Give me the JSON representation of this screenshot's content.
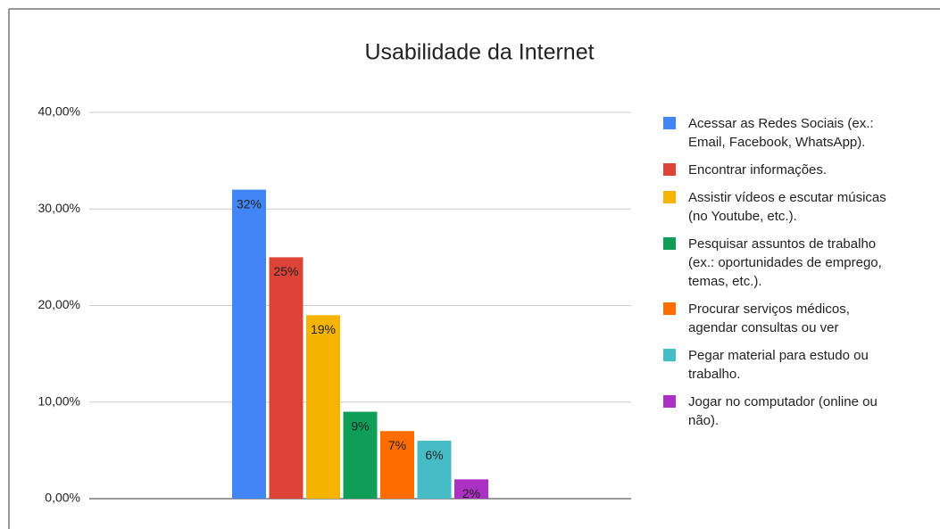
{
  "chart_data": {
    "type": "bar",
    "title": "Usabilidade da Internet",
    "categories": [
      null
    ],
    "series": [
      {
        "name": "Acessar as Redes Sociais (ex.: Email, Facebook, WhatsApp).",
        "color": "#4285f4",
        "values": [
          32
        ],
        "value_labels": [
          "32%"
        ]
      },
      {
        "name": "Encontrar informações.",
        "color": "#db4437",
        "values": [
          25
        ],
        "value_labels": [
          "25%"
        ]
      },
      {
        "name": "Assistir vídeos e escutar músicas (no Youtube, etc.).",
        "color": "#f4b400",
        "values": [
          19
        ],
        "value_labels": [
          "19%"
        ]
      },
      {
        "name": "Pesquisar assuntos de trabalho (ex.: oportunidades de emprego, temas, etc.).",
        "color": "#0f9d58",
        "values": [
          9
        ],
        "value_labels": [
          "9%"
        ]
      },
      {
        "name": "Procurar serviços médicos, agendar consultas ou ver",
        "color": "#ff6d00",
        "values": [
          7
        ],
        "value_labels": [
          "7%"
        ]
      },
      {
        "name": "Pegar material para estudo ou trabalho.",
        "color": "#46bdc6",
        "values": [
          6
        ],
        "value_labels": [
          "6%"
        ]
      },
      {
        "name": "Jogar no computador (online ou não).",
        "color": "#ab30c4",
        "values": [
          2
        ],
        "value_labels": [
          "2%"
        ]
      }
    ],
    "ylim": [
      0,
      40
    ],
    "yticks": [
      {
        "value": 0,
        "label": "0,00%"
      },
      {
        "value": 10,
        "label": "10,00%"
      },
      {
        "value": 20,
        "label": "20,00%"
      },
      {
        "value": 30,
        "label": "30,00%"
      },
      {
        "value": 40,
        "label": "40,00%"
      }
    ],
    "grid": true,
    "legend": "right"
  }
}
